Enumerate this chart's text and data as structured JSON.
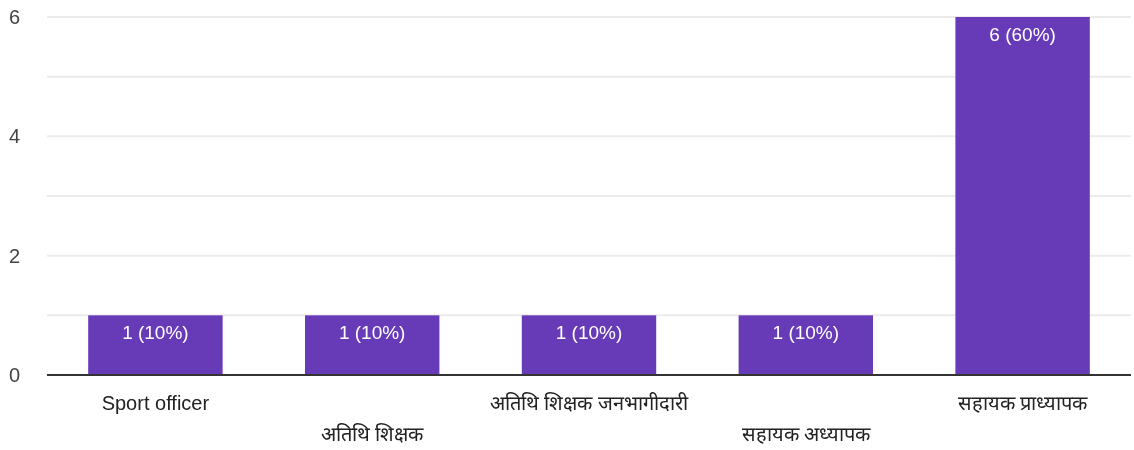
{
  "chart_data": {
    "type": "bar",
    "categories": [
      "Sport officer",
      "अतिथि शिक्षक",
      "अतिथि शिक्षक जनभागीदारी",
      "सहायक अध्यापक",
      "सहायक प्राध्यापक"
    ],
    "values": [
      1,
      1,
      1,
      1,
      6
    ],
    "color": "#673ab7",
    "value_labels": [
      "1 (10%)",
      "1 (10%)",
      "1 (10%)",
      "1 (10%)",
      "6 (60%)"
    ],
    "ylim": [
      0,
      6
    ],
    "yticks": [
      0,
      {
        "value": 1,
        "label": null
      },
      2,
      {
        "value": 3,
        "label": null
      },
      4,
      {
        "value": 5,
        "label": null
      },
      6
    ],
    "grid": "y"
  }
}
